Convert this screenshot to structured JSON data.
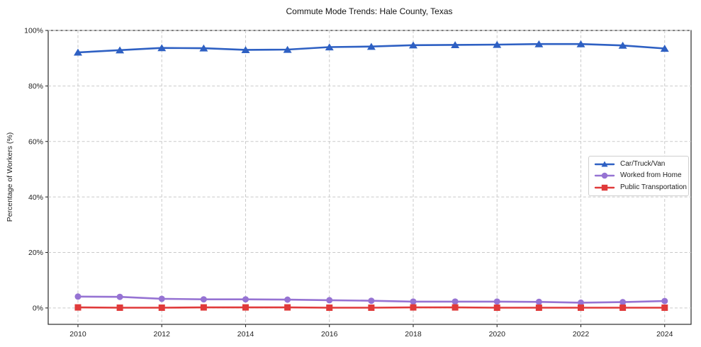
{
  "chart_data": {
    "type": "line",
    "title": "Commute Mode Trends: Hale County, Texas",
    "xlabel": "",
    "ylabel": "Percentage of Workers (%)",
    "x": [
      2010,
      2011,
      2012,
      2013,
      2014,
      2015,
      2016,
      2017,
      2018,
      2019,
      2020,
      2021,
      2022,
      2023,
      2024
    ],
    "series": [
      {
        "name": "Car/Truck/Van",
        "marker": "triangle",
        "color": "#2e60c3",
        "values": [
          92.1,
          92.9,
          93.7,
          93.6,
          93.0,
          93.1,
          94.0,
          94.2,
          94.7,
          94.8,
          94.9,
          95.1,
          95.1,
          94.6,
          93.5
        ]
      },
      {
        "name": "Worked from Home",
        "marker": "circle",
        "color": "#9673d3",
        "values": [
          4.1,
          4.0,
          3.3,
          3.1,
          3.1,
          3.0,
          2.8,
          2.6,
          2.3,
          2.3,
          2.3,
          2.2,
          1.9,
          2.1,
          2.5
        ]
      },
      {
        "name": "Public Transportation",
        "marker": "square",
        "color": "#e03a3a",
        "values": [
          0.2,
          0.1,
          0.1,
          0.2,
          0.2,
          0.2,
          0.1,
          0.1,
          0.2,
          0.2,
          0.1,
          0.1,
          0.1,
          0.1,
          0.1
        ]
      }
    ],
    "x_ticks": {
      "values": [
        2010,
        2012,
        2014,
        2016,
        2018,
        2020,
        2022,
        2024
      ],
      "labels": [
        "2010",
        "2012",
        "2014",
        "2016",
        "2018",
        "2020",
        "2022",
        "2024"
      ]
    },
    "y_ticks": {
      "values": [
        0,
        20,
        40,
        60,
        80,
        100
      ],
      "labels": [
        "0%",
        "20%",
        "40%",
        "60%",
        "80%",
        "100%"
      ]
    },
    "x_range": [
      2009.29,
      2024.63
    ],
    "y_range": [
      -5.9,
      100
    ],
    "grid": "dashed",
    "legend_position": "center-right",
    "style": {
      "grid_color": "#c9c9c9",
      "axis_color": "#2a2a2a",
      "tick_label_color": "#1f1f1f",
      "background": "#ffffff"
    }
  }
}
